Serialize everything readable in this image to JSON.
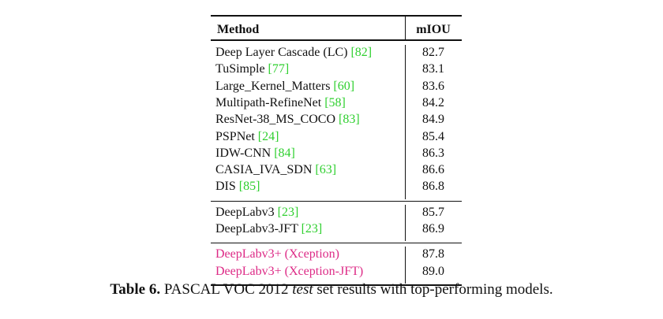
{
  "table": {
    "header": [
      "Method",
      "mIOU"
    ],
    "groups": [
      {
        "rows": [
          {
            "method": "Deep Layer Cascade (LC)",
            "ref": "[82]",
            "miou": "82.7"
          },
          {
            "method": "TuSimple",
            "ref": "[77]",
            "miou": "83.1"
          },
          {
            "method": "Large_Kernel_Matters",
            "ref": "[60]",
            "miou": "83.6"
          },
          {
            "method": "Multipath-RefineNet",
            "ref": "[58]",
            "miou": "84.2"
          },
          {
            "method": "ResNet-38_MS_COCO",
            "ref": "[83]",
            "miou": "84.9"
          },
          {
            "method": "PSPNet",
            "ref": "[24]",
            "miou": "85.4"
          },
          {
            "method": "IDW-CNN",
            "ref": "[84]",
            "miou": "86.3"
          },
          {
            "method": "CASIA_IVA_SDN",
            "ref": "[63]",
            "miou": "86.6"
          },
          {
            "method": "DIS",
            "ref": "[85]",
            "miou": "86.8"
          }
        ]
      },
      {
        "rows": [
          {
            "method": "DeepLabv3",
            "ref": "[23]",
            "miou": "85.7"
          },
          {
            "method": "DeepLabv3-JFT",
            "ref": "[23]",
            "miou": "86.9"
          }
        ]
      },
      {
        "highlight": true,
        "rows": [
          {
            "method": "DeepLabv3+ (Xception)",
            "miou": "87.8"
          },
          {
            "method": "DeepLabv3+ (Xception-JFT)",
            "miou": "89.0"
          }
        ]
      }
    ]
  },
  "caption": {
    "label": "Table 6.",
    "before": " PASCAL VOC 2012 ",
    "emphasis": "test",
    "after": " set results with top-performing models."
  }
}
